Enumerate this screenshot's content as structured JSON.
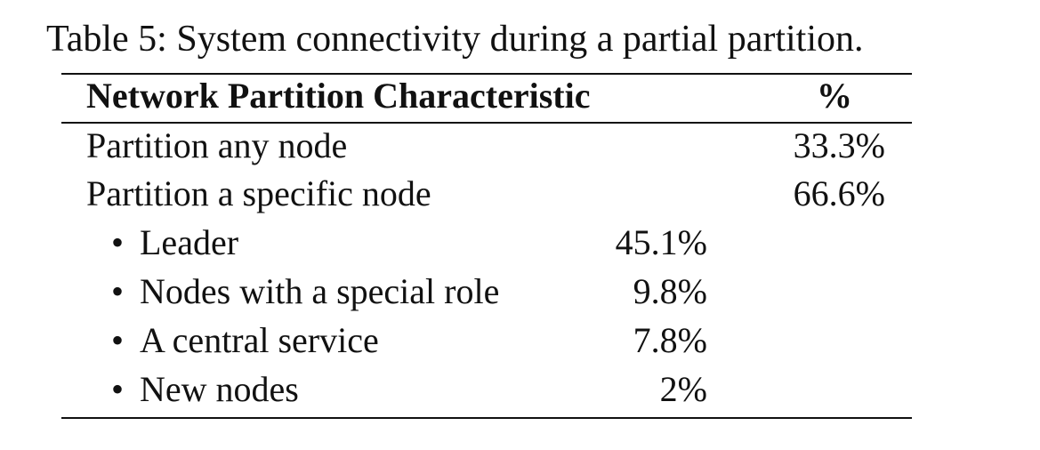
{
  "caption": "Table 5: System connectivity during a partial partition.",
  "table": {
    "headers": {
      "characteristic": "Network Partition Characteristic",
      "percent": "%"
    },
    "rows": [
      {
        "label": "Partition any node",
        "total": "33.3%"
      },
      {
        "label": "Partition a specific node",
        "total": "66.6%"
      }
    ],
    "subrows": [
      {
        "bullet": "•",
        "label": "Leader",
        "value": "45.1%"
      },
      {
        "bullet": "•",
        "label": "Nodes with a special role",
        "value": "9.8%"
      },
      {
        "bullet": "•",
        "label": "A central service",
        "value": "7.8%"
      },
      {
        "bullet": "•",
        "label": "New nodes",
        "value": "2%"
      }
    ]
  }
}
